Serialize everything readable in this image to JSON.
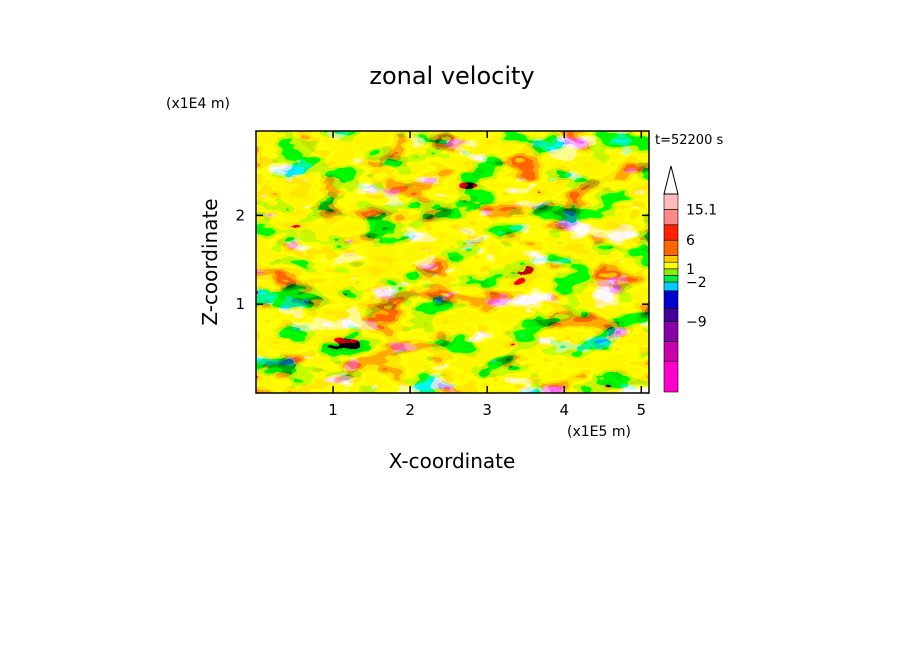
{
  "chart_data": {
    "type": "heatmap",
    "title": "zonal velocity",
    "xlabel": "X-coordinate",
    "ylabel": "Z-coordinate",
    "x_scale_label": "(x1E5 m)",
    "y_scale_label": "(x1E4 m)",
    "time_label": "t=52200 s",
    "xlim": [
      0,
      5.1
    ],
    "ylim": [
      0,
      2.95
    ],
    "x_ticks": [
      1,
      2,
      3,
      4,
      5
    ],
    "y_ticks": [
      1,
      2
    ],
    "x_tick_labels": [
      "1",
      "2",
      "3",
      "4",
      "5"
    ],
    "y_tick_labels": [
      "1",
      "2"
    ],
    "colorbar": {
      "extend_max": true,
      "bands": [
        {
          "color": "#ff00cc"
        },
        {
          "color": "#cc00aa"
        },
        {
          "color": "#8800aa"
        },
        {
          "color": "#440099"
        },
        {
          "color": "#0000cc"
        },
        {
          "color": "#00ccff"
        },
        {
          "color": "#00ee44"
        },
        {
          "color": "#88ee00"
        },
        {
          "color": "#ffff00"
        },
        {
          "color": "#ffcc00"
        },
        {
          "color": "#ff6600"
        },
        {
          "color": "#ff2200"
        },
        {
          "color": "#ff8888"
        },
        {
          "color": "#ffbbbb"
        }
      ],
      "tick_labels": [
        "15.1",
        "6",
        "1",
        "−2",
        "−9"
      ]
    }
  }
}
